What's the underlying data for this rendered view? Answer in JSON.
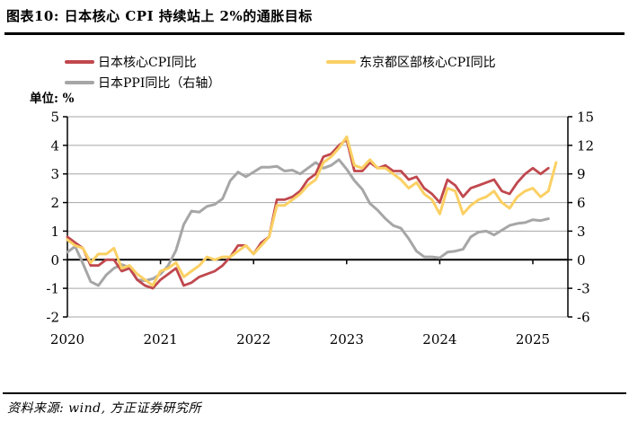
{
  "figure": {
    "title": "图表10: 日本核心 CPI 持续站上 2%的通胀目标",
    "unit_label": "单位: %",
    "source": "资料来源: wind, 方正证券研究所"
  },
  "legend": {
    "items": [
      {
        "id": "japan-core-cpi",
        "label": "日本核心CPI同比",
        "color": "#C0484E"
      },
      {
        "id": "tokyo-core-cpi",
        "label": "东京都区部核心CPI同比",
        "color": "#FBD063"
      },
      {
        "id": "japan-ppi",
        "label": "日本PPI同比（右轴）",
        "color": "#A6A6A6"
      }
    ]
  },
  "chart_data": {
    "type": "line",
    "x_unit": "month",
    "x_start": "2020-01",
    "x_tick_labels": [
      "2020",
      "2021",
      "2022",
      "2023",
      "2024",
      "2025"
    ],
    "left_axis": {
      "min": -2,
      "max": 5,
      "ticks": [
        5,
        4,
        3,
        2,
        1,
        0,
        -1,
        -2
      ]
    },
    "right_axis": {
      "min": -6,
      "max": 15,
      "ticks": [
        15,
        12,
        9,
        6,
        3,
        0,
        -3,
        -6
      ]
    },
    "grid": true,
    "legend_position": "top",
    "series": [
      {
        "id": "japan-ppi",
        "name": "日本PPI同比（右轴）",
        "axis": "right",
        "color": "#A6A6A6",
        "stroke_width": 3,
        "values": [
          0.8,
          1.4,
          -0.4,
          -2.3,
          -2.7,
          -1.6,
          -0.9,
          -0.5,
          -0.8,
          -2.1,
          -2.2,
          -2.0,
          -1.5,
          -0.6,
          1.0,
          3.7,
          5.1,
          5.0,
          5.6,
          5.8,
          6.4,
          8.3,
          9.2,
          8.7,
          9.2,
          9.7,
          9.7,
          9.8,
          9.3,
          9.4,
          9.0,
          9.6,
          10.2,
          9.6,
          9.9,
          10.5,
          9.5,
          8.3,
          7.4,
          5.9,
          5.2,
          4.3,
          3.6,
          3.3,
          2.2,
          0.9,
          0.3,
          0.3,
          0.2,
          0.8,
          0.9,
          1.1,
          2.4,
          2.9,
          3.0,
          2.6,
          3.1,
          3.6,
          3.8,
          3.9,
          4.2,
          4.1,
          4.3
        ]
      },
      {
        "id": "japan-core-cpi",
        "name": "日本核心CPI同比",
        "axis": "left",
        "color": "#C0484E",
        "stroke_width": 2.8,
        "values": [
          0.8,
          0.6,
          0.4,
          -0.2,
          -0.2,
          0.0,
          0.0,
          -0.4,
          -0.3,
          -0.7,
          -0.9,
          -1.0,
          -0.7,
          -0.5,
          -0.3,
          -0.9,
          -0.8,
          -0.6,
          -0.5,
          -0.4,
          -0.2,
          0.1,
          0.5,
          0.5,
          0.2,
          0.6,
          0.8,
          2.1,
          2.1,
          2.2,
          2.4,
          2.8,
          3.0,
          3.6,
          3.7,
          4.0,
          4.2,
          3.1,
          3.1,
          3.4,
          3.2,
          3.3,
          3.1,
          3.1,
          2.8,
          2.9,
          2.5,
          2.3,
          2.0,
          2.8,
          2.6,
          2.2,
          2.5,
          2.6,
          2.7,
          2.8,
          2.4,
          2.3,
          2.7,
          3.0,
          3.2,
          3.0,
          3.2
        ]
      },
      {
        "id": "tokyo-core-cpi",
        "name": "东京都区部核心CPI同比",
        "axis": "left",
        "color": "#FBD063",
        "stroke_width": 3,
        "values": [
          0.7,
          0.5,
          0.4,
          -0.1,
          0.2,
          0.2,
          0.4,
          -0.3,
          -0.2,
          -0.5,
          -0.7,
          -0.9,
          -0.4,
          -0.3,
          -0.1,
          -0.6,
          -0.4,
          -0.2,
          0.1,
          0.0,
          0.1,
          0.1,
          0.3,
          0.5,
          0.2,
          0.5,
          0.8,
          1.9,
          1.9,
          2.1,
          2.3,
          2.6,
          2.8,
          3.4,
          3.6,
          3.9,
          4.3,
          3.3,
          3.2,
          3.5,
          3.2,
          3.2,
          3.0,
          2.8,
          2.5,
          2.7,
          2.3,
          2.1,
          1.6,
          2.5,
          2.4,
          1.6,
          1.9,
          2.1,
          2.2,
          2.4,
          2.0,
          1.8,
          2.2,
          2.4,
          2.5,
          2.2,
          2.4,
          3.4
        ]
      }
    ]
  }
}
